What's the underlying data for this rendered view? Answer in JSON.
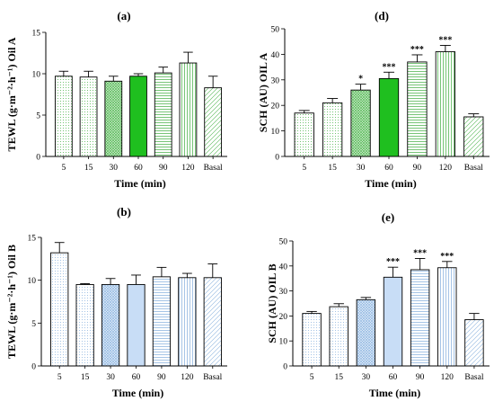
{
  "colors": {
    "green_fill": "#1fbf1f",
    "green_light": "#d4f0d4",
    "green_pattern": "#55b755",
    "blue_fill": "#c8ddf6",
    "blue_light": "#eaf2fc",
    "blue_pattern": "#8fb6e0",
    "axis": "#000000"
  },
  "chart_data": [
    {
      "id": "a",
      "label": "(a)",
      "type": "bar",
      "categories": [
        "5",
        "15",
        "30",
        "60",
        "90",
        "120",
        "Basal"
      ],
      "values": [
        9.7,
        9.6,
        9.1,
        9.7,
        10.1,
        11.3,
        8.3
      ],
      "errors": [
        0.6,
        0.7,
        0.6,
        0.3,
        0.7,
        1.3,
        1.4
      ],
      "significance": [
        "",
        "",
        "",
        "",
        "",
        "",
        ""
      ],
      "ylim": [
        0,
        15
      ],
      "yticks": [
        0,
        5,
        10,
        15
      ],
      "ylabel": "TEWL (g·m⁻²·h⁻¹) Oil A",
      "xlabel": "Time (min)",
      "palette": "green",
      "patterns": [
        "dots",
        "dots",
        "cross",
        "solid",
        "hlines",
        "vlines",
        "diag"
      ]
    },
    {
      "id": "d",
      "label": "(d)",
      "type": "bar",
      "categories": [
        "5",
        "15",
        "30",
        "60",
        "90",
        "120",
        "Basal"
      ],
      "values": [
        17,
        21,
        26,
        30.5,
        37,
        41,
        15.5
      ],
      "errors": [
        1,
        1.7,
        2.3,
        2.5,
        2.8,
        2.5,
        1.2
      ],
      "significance": [
        "",
        "",
        "*",
        "***",
        "***",
        "***",
        ""
      ],
      "ylim": [
        0,
        50
      ],
      "yticks": [
        0,
        10,
        20,
        30,
        40,
        50
      ],
      "ylabel": "SCH (AU) OIL A",
      "xlabel": "Time (min)",
      "palette": "green",
      "patterns": [
        "dots",
        "dots",
        "cross",
        "solid",
        "hlines",
        "vlines",
        "diag"
      ]
    },
    {
      "id": "b",
      "label": "(b)",
      "type": "bar",
      "categories": [
        "5",
        "15",
        "30",
        "60",
        "90",
        "120",
        "Basal"
      ],
      "values": [
        13.2,
        9.5,
        9.5,
        9.5,
        10.4,
        10.3,
        10.3
      ],
      "errors": [
        1.2,
        0.1,
        0.7,
        1.1,
        1.1,
        0.5,
        1.6
      ],
      "significance": [
        "",
        "",
        "",
        "",
        "",
        "",
        ""
      ],
      "ylim": [
        0,
        15
      ],
      "yticks": [
        0,
        5,
        10,
        15
      ],
      "ylabel": "TEWL (g·m⁻²·h⁻¹) Oil B",
      "xlabel": "Time (min)",
      "palette": "blue",
      "patterns": [
        "dots",
        "dots",
        "cross",
        "solid",
        "hlines",
        "vlines",
        "diag"
      ]
    },
    {
      "id": "e",
      "label": "(e)",
      "type": "bar",
      "categories": [
        "5",
        "15",
        "30",
        "60",
        "90",
        "120",
        "Basal"
      ],
      "values": [
        21,
        23.7,
        26.5,
        35.5,
        38.5,
        39.3,
        18.5
      ],
      "errors": [
        0.8,
        1.2,
        0.9,
        4,
        4.5,
        2.5,
        2.5
      ],
      "significance": [
        "",
        "",
        "",
        "***",
        "***",
        "***",
        ""
      ],
      "ylim": [
        0,
        50
      ],
      "yticks": [
        0,
        10,
        20,
        30,
        40,
        50
      ],
      "ylabel": "SCH (AU) OIL B",
      "xlabel": "Time (min)",
      "palette": "blue",
      "patterns": [
        "dots",
        "dots",
        "cross",
        "solid",
        "hlines",
        "vlines",
        "diag"
      ]
    }
  ]
}
